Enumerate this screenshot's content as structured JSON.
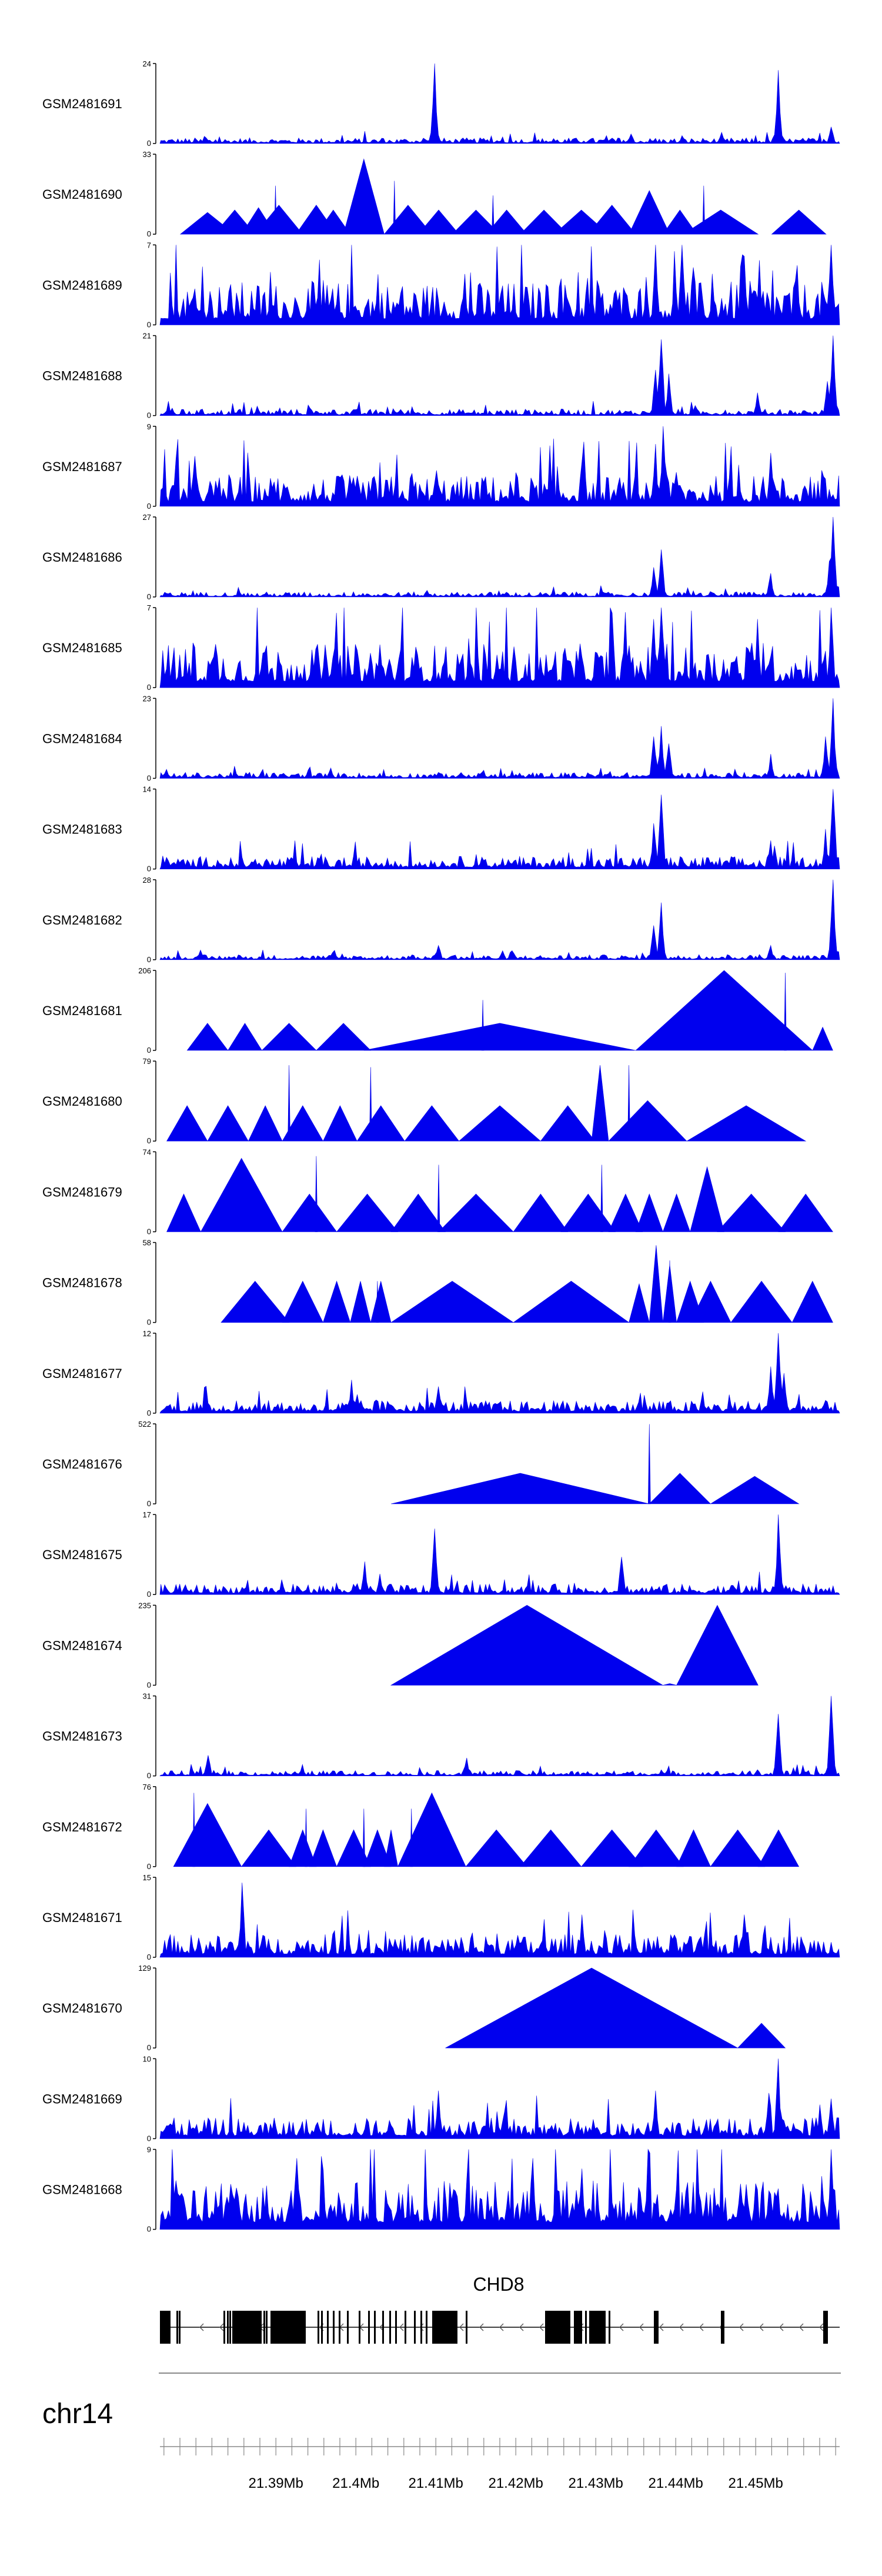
{
  "chart_data": {
    "type": "area",
    "title": "",
    "chromosome": "chr14",
    "gene": {
      "name": "CHD8",
      "strand": "-"
    },
    "x_axis": {
      "range_mb": [
        21.3755,
        21.4605
      ],
      "tick_labels": [
        "21.39Mb",
        "21.4Mb",
        "21.41Mb",
        "21.42Mb",
        "21.43Mb",
        "21.44Mb",
        "21.45Mb"
      ],
      "tick_values_mb": [
        21.39,
        21.4,
        21.41,
        21.42,
        21.43,
        21.44,
        21.45
      ],
      "minor_tick_step_mb": 0.002
    },
    "series": [
      {
        "name": "GSM2481691",
        "ymax": 24,
        "style": "dense",
        "baseline": 1.0,
        "peaks": [
          [
            0.405,
            24
          ],
          [
            0.912,
            22
          ],
          [
            0.99,
            5
          ]
        ]
      },
      {
        "name": "GSM2481690",
        "ymax": 33,
        "style": "tri",
        "tri": [
          [
            0.03,
            0.11,
            9
          ],
          [
            0.08,
            0.14,
            10
          ],
          [
            0.12,
            0.17,
            11
          ],
          [
            0.14,
            0.21,
            12
          ],
          [
            0.2,
            0.26,
            12
          ],
          [
            0.23,
            0.28,
            10
          ],
          [
            0.27,
            0.33,
            31
          ],
          [
            0.33,
            0.4,
            12
          ],
          [
            0.38,
            0.44,
            10
          ],
          [
            0.43,
            0.5,
            10
          ],
          [
            0.48,
            0.54,
            10
          ],
          [
            0.53,
            0.6,
            10
          ],
          [
            0.58,
            0.66,
            10
          ],
          [
            0.63,
            0.7,
            12
          ],
          [
            0.69,
            0.75,
            18
          ],
          [
            0.74,
            0.79,
            10
          ],
          [
            0.77,
            0.88,
            10
          ],
          [
            0.9,
            0.98,
            10
          ]
        ],
        "spikes": [
          [
            0.17,
            20
          ],
          [
            0.345,
            22
          ],
          [
            0.49,
            16
          ],
          [
            0.8,
            20
          ]
        ]
      },
      {
        "name": "GSM2481689",
        "ymax": 7,
        "style": "dense",
        "baseline": 2.2,
        "peaks": [
          [
            0.73,
            7
          ],
          [
            0.77,
            7
          ],
          [
            0.86,
            6
          ],
          [
            0.99,
            7
          ]
        ]
      },
      {
        "name": "GSM2481688",
        "ymax": 21,
        "style": "dense",
        "baseline": 1.0,
        "peaks": [
          [
            0.739,
            20
          ],
          [
            0.73,
            12
          ],
          [
            0.749,
            11
          ],
          [
            0.993,
            21
          ],
          [
            0.983,
            9
          ],
          [
            0.88,
            6
          ]
        ]
      },
      {
        "name": "GSM2481687",
        "ymax": 9,
        "style": "dense",
        "baseline": 2.0,
        "peaks": [
          [
            0.74,
            9
          ],
          [
            0.73,
            7
          ],
          [
            0.9,
            6
          ],
          [
            0.62,
            5
          ]
        ]
      },
      {
        "name": "GSM2481686",
        "ymax": 27,
        "style": "dense",
        "baseline": 1.0,
        "peaks": [
          [
            0.738,
            16
          ],
          [
            0.728,
            10
          ],
          [
            0.993,
            27
          ],
          [
            0.985,
            12
          ],
          [
            0.9,
            8
          ]
        ]
      },
      {
        "name": "GSM2481685",
        "ymax": 7,
        "style": "dense",
        "baseline": 2.2,
        "peaks": [
          [
            0.738,
            7
          ],
          [
            0.728,
            6
          ],
          [
            0.88,
            6
          ],
          [
            0.99,
            7
          ]
        ]
      },
      {
        "name": "GSM2481684",
        "ymax": 23,
        "style": "dense",
        "baseline": 1.0,
        "peaks": [
          [
            0.738,
            15
          ],
          [
            0.728,
            12
          ],
          [
            0.748,
            10
          ],
          [
            0.993,
            23
          ],
          [
            0.98,
            12
          ],
          [
            0.9,
            7
          ]
        ]
      },
      {
        "name": "GSM2481683",
        "ymax": 14,
        "style": "dense",
        "baseline": 1.3,
        "peaks": [
          [
            0.738,
            13
          ],
          [
            0.728,
            8
          ],
          [
            0.993,
            14
          ],
          [
            0.98,
            7
          ],
          [
            0.9,
            5
          ]
        ]
      },
      {
        "name": "GSM2481682",
        "ymax": 28,
        "style": "dense",
        "baseline": 1.0,
        "peaks": [
          [
            0.738,
            20
          ],
          [
            0.728,
            12
          ],
          [
            0.993,
            28
          ],
          [
            0.41,
            5
          ],
          [
            0.9,
            5
          ]
        ]
      },
      {
        "name": "GSM2481681",
        "ymax": 206,
        "style": "tri",
        "tri": [
          [
            0.04,
            0.1,
            70
          ],
          [
            0.1,
            0.15,
            70
          ],
          [
            0.15,
            0.23,
            70
          ],
          [
            0.23,
            0.31,
            70
          ],
          [
            0.3,
            0.7,
            70
          ],
          [
            0.7,
            0.96,
            206
          ],
          [
            0.96,
            0.99,
            60
          ]
        ],
        "spikes": [
          [
            0.475,
            130
          ],
          [
            0.92,
            200
          ]
        ]
      },
      {
        "name": "GSM2481680",
        "ymax": 79,
        "style": "tri",
        "tri": [
          [
            0.01,
            0.07,
            35
          ],
          [
            0.07,
            0.13,
            35
          ],
          [
            0.13,
            0.18,
            35
          ],
          [
            0.18,
            0.24,
            35
          ],
          [
            0.24,
            0.29,
            35
          ],
          [
            0.29,
            0.36,
            35
          ],
          [
            0.36,
            0.44,
            35
          ],
          [
            0.44,
            0.56,
            35
          ],
          [
            0.56,
            0.64,
            35
          ],
          [
            0.635,
            0.66,
            75
          ],
          [
            0.66,
            0.775,
            40
          ],
          [
            0.775,
            0.95,
            35
          ]
        ],
        "spikes": [
          [
            0.19,
            75
          ],
          [
            0.31,
            73
          ],
          [
            0.69,
            75
          ]
        ]
      },
      {
        "name": "GSM2481679",
        "ymax": 74,
        "style": "tri",
        "tri": [
          [
            0.01,
            0.06,
            35
          ],
          [
            0.06,
            0.18,
            68
          ],
          [
            0.18,
            0.26,
            35
          ],
          [
            0.26,
            0.35,
            35
          ],
          [
            0.34,
            0.42,
            35
          ],
          [
            0.41,
            0.52,
            35
          ],
          [
            0.52,
            0.6,
            35
          ],
          [
            0.59,
            0.67,
            35
          ],
          [
            0.66,
            0.71,
            35
          ],
          [
            0.7,
            0.74,
            35
          ],
          [
            0.74,
            0.78,
            35
          ],
          [
            0.78,
            0.83,
            60
          ],
          [
            0.82,
            0.92,
            35
          ],
          [
            0.91,
            0.99,
            35
          ]
        ],
        "spikes": [
          [
            0.23,
            70
          ],
          [
            0.41,
            62
          ],
          [
            0.65,
            62
          ]
        ]
      },
      {
        "name": "GSM2481678",
        "ymax": 58,
        "style": "tri",
        "tri": [
          [
            0.09,
            0.19,
            30
          ],
          [
            0.18,
            0.24,
            30
          ],
          [
            0.24,
            0.28,
            30
          ],
          [
            0.28,
            0.31,
            30
          ],
          [
            0.31,
            0.34,
            30
          ],
          [
            0.34,
            0.52,
            30
          ],
          [
            0.52,
            0.69,
            30
          ],
          [
            0.69,
            0.72,
            28
          ],
          [
            0.72,
            0.74,
            56
          ],
          [
            0.74,
            0.76,
            42
          ],
          [
            0.76,
            0.8,
            30
          ],
          [
            0.78,
            0.84,
            30
          ],
          [
            0.84,
            0.93,
            30
          ],
          [
            0.93,
            0.99,
            30
          ]
        ],
        "spikes": [
          [
            0.32,
            30
          ],
          [
            0.75,
            45
          ]
        ]
      },
      {
        "name": "GSM2481677",
        "ymax": 12,
        "style": "dense",
        "baseline": 1.1,
        "peaks": [
          [
            0.91,
            12
          ],
          [
            0.9,
            7
          ],
          [
            0.92,
            6
          ],
          [
            0.41,
            4
          ],
          [
            0.28,
            5
          ]
        ]
      },
      {
        "name": "GSM2481676",
        "ymax": 522,
        "style": "tri",
        "tri": [
          [
            0.34,
            0.72,
            200
          ],
          [
            0.72,
            0.81,
            200
          ],
          [
            0.81,
            0.94,
            180
          ]
        ],
        "spikes": [
          [
            0.72,
            520
          ]
        ]
      },
      {
        "name": "GSM2481675",
        "ymax": 17,
        "style": "dense",
        "baseline": 1.3,
        "peaks": [
          [
            0.405,
            14
          ],
          [
            0.91,
            17
          ],
          [
            0.68,
            8
          ],
          [
            0.3,
            7
          ]
        ]
      },
      {
        "name": "GSM2481674",
        "ymax": 235,
        "style": "tri",
        "tri": [
          [
            0.34,
            0.74,
            235
          ],
          [
            0.74,
            0.76,
            5
          ],
          [
            0.76,
            0.88,
            235
          ]
        ],
        "spikes": []
      },
      {
        "name": "GSM2481673",
        "ymax": 31,
        "style": "dense",
        "baseline": 1.2,
        "peaks": [
          [
            0.91,
            24
          ],
          [
            0.99,
            31
          ],
          [
            0.07,
            8
          ],
          [
            0.45,
            7
          ]
        ]
      },
      {
        "name": "GSM2481672",
        "ymax": 76,
        "style": "tri",
        "tri": [
          [
            0.02,
            0.12,
            60
          ],
          [
            0.12,
            0.2,
            35
          ],
          [
            0.19,
            0.23,
            35
          ],
          [
            0.22,
            0.26,
            35
          ],
          [
            0.26,
            0.31,
            35
          ],
          [
            0.3,
            0.34,
            35
          ],
          [
            0.33,
            0.35,
            35
          ],
          [
            0.35,
            0.45,
            70
          ],
          [
            0.45,
            0.54,
            35
          ],
          [
            0.53,
            0.62,
            35
          ],
          [
            0.62,
            0.71,
            35
          ],
          [
            0.69,
            0.77,
            35
          ],
          [
            0.76,
            0.81,
            35
          ],
          [
            0.81,
            0.89,
            35
          ],
          [
            0.88,
            0.94,
            35
          ]
        ],
        "spikes": [
          [
            0.05,
            70
          ],
          [
            0.215,
            55
          ],
          [
            0.3,
            55
          ],
          [
            0.37,
            55
          ]
        ]
      },
      {
        "name": "GSM2481671",
        "ymax": 15,
        "style": "dense",
        "baseline": 2.5,
        "peaks": [
          [
            0.12,
            14
          ],
          [
            0.62,
            8
          ],
          [
            0.86,
            8
          ]
        ]
      },
      {
        "name": "GSM2481670",
        "ymax": 129,
        "style": "tri",
        "tri": [
          [
            0.42,
            0.85,
            129
          ],
          [
            0.85,
            0.92,
            40
          ]
        ],
        "spikes": []
      },
      {
        "name": "GSM2481669",
        "ymax": 10,
        "style": "dense",
        "baseline": 1.5,
        "peaks": [
          [
            0.41,
            6
          ],
          [
            0.91,
            10
          ],
          [
            0.73,
            6
          ],
          [
            0.99,
            5
          ]
        ]
      },
      {
        "name": "GSM2481668",
        "ymax": 9,
        "style": "dense",
        "baseline": 3.2,
        "peaks": [
          [
            0.2,
            8
          ],
          [
            0.55,
            8
          ],
          [
            0.99,
            9
          ]
        ]
      }
    ]
  }
}
